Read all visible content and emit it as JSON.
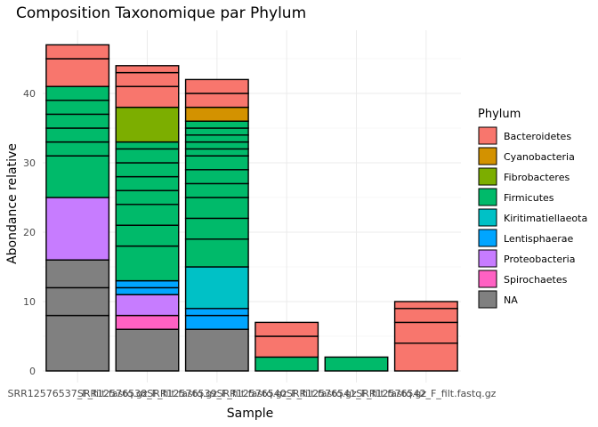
{
  "chart_data": {
    "type": "bar",
    "stacked": true,
    "title": "Composition Taxonomique par Phylum",
    "xlabel": "Sample",
    "ylabel": "Abondance relative",
    "ylim": [
      0,
      49
    ],
    "yticks": [
      0,
      10,
      20,
      30,
      40
    ],
    "grid": true,
    "legend_position": "right",
    "legend_title": "Phylum",
    "categories": [
      "SRR12576537_F_filt.fastq.gz",
      "SRR12576538_F_filt.fastq.gz",
      "SRR12576539_F_filt.fastq.gz",
      "SRR12576540_F_filt.fastq.gz",
      "SRR12576541_F_filt.fastq.gz",
      "SRR12576542_F_filt.fastq.gz"
    ],
    "phyla": [
      {
        "name": "Bacteroidetes",
        "color": "#F8766D"
      },
      {
        "name": "Cyanobacteria",
        "color": "#D39200"
      },
      {
        "name": "Fibrobacteres",
        "color": "#7CAE00"
      },
      {
        "name": "Firmicutes",
        "color": "#00BA6A"
      },
      {
        "name": "Kiritimatiellaeota",
        "color": "#00C1C6"
      },
      {
        "name": "Lentisphaerae",
        "color": "#00A5FF"
      },
      {
        "name": "Proteobacteria",
        "color": "#C77CFF"
      },
      {
        "name": "Spirochaetes",
        "color": "#FF61C3"
      },
      {
        "name": "NA",
        "color": "#808080"
      }
    ],
    "bars": [
      {
        "sample": "SRR12576537_F_filt.fastq.gz",
        "segments": [
          {
            "phylum": "NA",
            "value": 8
          },
          {
            "phylum": "NA",
            "value": 4
          },
          {
            "phylum": "NA",
            "value": 4
          },
          {
            "phylum": "Proteobacteria",
            "value": 9
          },
          {
            "phylum": "Firmicutes",
            "value": 6
          },
          {
            "phylum": "Firmicutes",
            "value": 2
          },
          {
            "phylum": "Firmicutes",
            "value": 2
          },
          {
            "phylum": "Firmicutes",
            "value": 2
          },
          {
            "phylum": "Firmicutes",
            "value": 2
          },
          {
            "phylum": "Firmicutes",
            "value": 2
          },
          {
            "phylum": "Bacteroidetes",
            "value": 4
          },
          {
            "phylum": "Bacteroidetes",
            "value": 2
          }
        ]
      },
      {
        "sample": "SRR12576538_F_filt.fastq.gz",
        "segments": [
          {
            "phylum": "NA",
            "value": 6
          },
          {
            "phylum": "Spirochaetes",
            "value": 2
          },
          {
            "phylum": "Proteobacteria",
            "value": 3
          },
          {
            "phylum": "Lentisphaerae",
            "value": 1
          },
          {
            "phylum": "Lentisphaerae",
            "value": 1
          },
          {
            "phylum": "Firmicutes",
            "value": 5
          },
          {
            "phylum": "Firmicutes",
            "value": 3
          },
          {
            "phylum": "Firmicutes",
            "value": 3
          },
          {
            "phylum": "Firmicutes",
            "value": 2
          },
          {
            "phylum": "Firmicutes",
            "value": 2
          },
          {
            "phylum": "Firmicutes",
            "value": 2
          },
          {
            "phylum": "Firmicutes",
            "value": 2
          },
          {
            "phylum": "Firmicutes",
            "value": 1
          },
          {
            "phylum": "Fibrobacteres",
            "value": 5
          },
          {
            "phylum": "Bacteroidetes",
            "value": 3
          },
          {
            "phylum": "Bacteroidetes",
            "value": 2
          },
          {
            "phylum": "Bacteroidetes",
            "value": 1
          }
        ]
      },
      {
        "sample": "SRR12576539_F_filt.fastq.gz",
        "segments": [
          {
            "phylum": "NA",
            "value": 6
          },
          {
            "phylum": "Lentisphaerae",
            "value": 2
          },
          {
            "phylum": "Lentisphaerae",
            "value": 1
          },
          {
            "phylum": "Kiritimatiellaeota",
            "value": 6
          },
          {
            "phylum": "Firmicutes",
            "value": 4
          },
          {
            "phylum": "Firmicutes",
            "value": 3
          },
          {
            "phylum": "Firmicutes",
            "value": 3
          },
          {
            "phylum": "Firmicutes",
            "value": 2
          },
          {
            "phylum": "Firmicutes",
            "value": 2
          },
          {
            "phylum": "Firmicutes",
            "value": 2
          },
          {
            "phylum": "Firmicutes",
            "value": 1
          },
          {
            "phylum": "Firmicutes",
            "value": 1
          },
          {
            "phylum": "Firmicutes",
            "value": 1
          },
          {
            "phylum": "Firmicutes",
            "value": 1
          },
          {
            "phylum": "Firmicutes",
            "value": 1
          },
          {
            "phylum": "Cyanobacteria",
            "value": 2
          },
          {
            "phylum": "Bacteroidetes",
            "value": 2
          },
          {
            "phylum": "Bacteroidetes",
            "value": 2
          }
        ]
      },
      {
        "sample": "SRR12576540_F_filt.fastq.gz",
        "segments": [
          {
            "phylum": "Firmicutes",
            "value": 2
          },
          {
            "phylum": "Bacteroidetes",
            "value": 3
          },
          {
            "phylum": "Bacteroidetes",
            "value": 2
          }
        ]
      },
      {
        "sample": "SRR12576541_F_filt.fastq.gz",
        "segments": [
          {
            "phylum": "Firmicutes",
            "value": 2
          }
        ]
      },
      {
        "sample": "SRR12576542_F_filt.fastq.gz",
        "segments": [
          {
            "phylum": "Bacteroidetes",
            "value": 4
          },
          {
            "phylum": "Bacteroidetes",
            "value": 3
          },
          {
            "phylum": "Bacteroidetes",
            "value": 2
          },
          {
            "phylum": "Bacteroidetes",
            "value": 1
          }
        ]
      }
    ]
  }
}
